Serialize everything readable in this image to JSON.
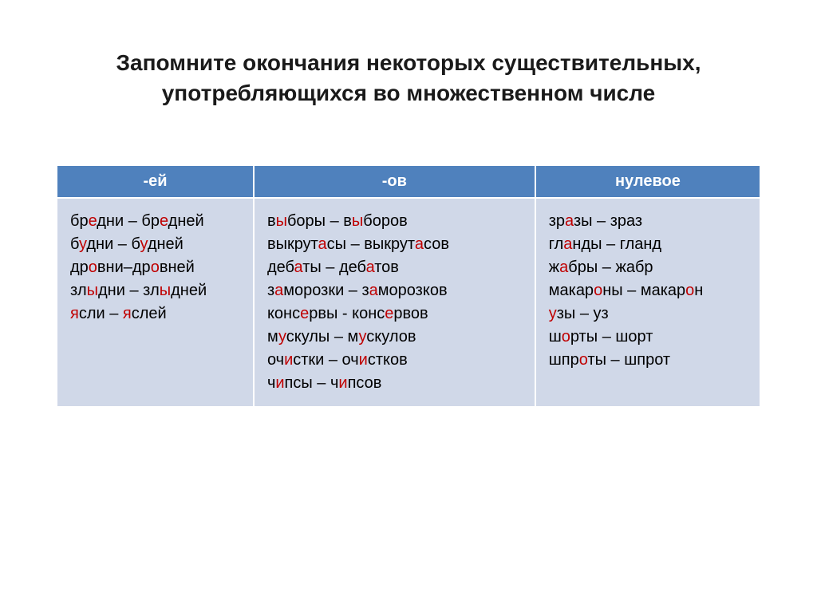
{
  "title": "Запомните окончания некоторых существительных, употребляющихся во множественном числе",
  "colors": {
    "highlight": "#c00000",
    "header_bg": "#4f81bd",
    "header_text": "#ffffff",
    "cell_bg": "#d0d8e8",
    "text": "#000000"
  },
  "columns": [
    {
      "header": "-ей"
    },
    {
      "header": "-ов"
    },
    {
      "header": "нулевое"
    }
  ],
  "cells": [
    [
      [
        {
          "t": "бр"
        },
        {
          "t": "е",
          "hl": true
        },
        {
          "t": "дни – бр"
        },
        {
          "t": "е",
          "hl": true
        },
        {
          "t": "дней"
        }
      ],
      [
        {
          "t": "б"
        },
        {
          "t": "у",
          "hl": true
        },
        {
          "t": "дни – б"
        },
        {
          "t": "у",
          "hl": true
        },
        {
          "t": "дней"
        }
      ],
      [
        {
          "t": "др"
        },
        {
          "t": "о",
          "hl": true
        },
        {
          "t": "вни–др"
        },
        {
          "t": "о",
          "hl": true
        },
        {
          "t": "вней"
        }
      ],
      [
        {
          "t": "зл"
        },
        {
          "t": "ы",
          "hl": true
        },
        {
          "t": "дни – зл"
        },
        {
          "t": "ы",
          "hl": true
        },
        {
          "t": "дней"
        }
      ],
      [
        {
          "t": "я",
          "hl": true
        },
        {
          "t": "сли – "
        },
        {
          "t": "я",
          "hl": true
        },
        {
          "t": "слей"
        }
      ]
    ],
    [
      [
        {
          "t": "в"
        },
        {
          "t": "ы",
          "hl": true
        },
        {
          "t": "боры – в"
        },
        {
          "t": "ы",
          "hl": true
        },
        {
          "t": "боров"
        }
      ],
      [
        {
          "t": "выкрут"
        },
        {
          "t": "а",
          "hl": true
        },
        {
          "t": "сы – выкрут"
        },
        {
          "t": "а",
          "hl": true
        },
        {
          "t": "сов"
        }
      ],
      [
        {
          "t": "деб"
        },
        {
          "t": "а",
          "hl": true
        },
        {
          "t": "ты – деб"
        },
        {
          "t": "а",
          "hl": true
        },
        {
          "t": "тов"
        }
      ],
      [
        {
          "t": "з"
        },
        {
          "t": "а",
          "hl": true
        },
        {
          "t": "морозки – з"
        },
        {
          "t": "а",
          "hl": true
        },
        {
          "t": "морозков"
        }
      ],
      [
        {
          "t": "конс"
        },
        {
          "t": "е",
          "hl": true
        },
        {
          "t": "рвы - конс"
        },
        {
          "t": "е",
          "hl": true
        },
        {
          "t": "рвов"
        }
      ],
      [
        {
          "t": "м"
        },
        {
          "t": "у",
          "hl": true
        },
        {
          "t": "скулы – м"
        },
        {
          "t": "у",
          "hl": true
        },
        {
          "t": "скулов"
        }
      ],
      [
        {
          "t": "оч"
        },
        {
          "t": "и",
          "hl": true
        },
        {
          "t": "стки – оч"
        },
        {
          "t": "и",
          "hl": true
        },
        {
          "t": "стков"
        }
      ],
      [
        {
          "t": "ч"
        },
        {
          "t": "и",
          "hl": true
        },
        {
          "t": "псы – ч"
        },
        {
          "t": "и",
          "hl": true
        },
        {
          "t": "псов"
        }
      ]
    ],
    [
      [
        {
          "t": "зр"
        },
        {
          "t": "а",
          "hl": true
        },
        {
          "t": "зы – зраз"
        }
      ],
      [
        {
          "t": "гл"
        },
        {
          "t": "а",
          "hl": true
        },
        {
          "t": "нды – гланд"
        }
      ],
      [
        {
          "t": "ж"
        },
        {
          "t": "а",
          "hl": true
        },
        {
          "t": "бры – жабр"
        }
      ],
      [
        {
          "t": "макар"
        },
        {
          "t": "о",
          "hl": true
        },
        {
          "t": "ны – макар"
        },
        {
          "t": "о",
          "hl": true
        },
        {
          "t": "н"
        }
      ],
      [
        {
          "t": "у",
          "hl": true
        },
        {
          "t": "зы – уз"
        }
      ],
      [
        {
          "t": "ш"
        },
        {
          "t": "о",
          "hl": true
        },
        {
          "t": "рты – шорт"
        }
      ],
      [
        {
          "t": "шпр"
        },
        {
          "t": "о",
          "hl": true
        },
        {
          "t": "ты – шпрот"
        }
      ]
    ]
  ],
  "col_widths": [
    "28%",
    "40%",
    "32%"
  ]
}
